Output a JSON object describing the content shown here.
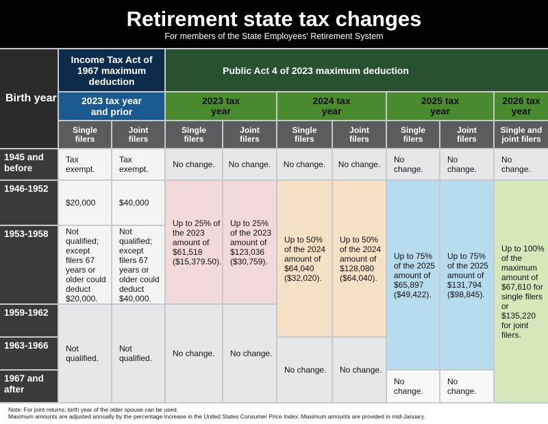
{
  "title": "Retirement state tax changes",
  "subtitle": "For members of the State Employees' Retirement System",
  "headers": {
    "birth_year": "Birth year",
    "income_tax_act": "Income Tax Act of 1967 maximum deduction",
    "public_act": "Public Act 4 of 2023 maximum deduction",
    "y2023_prior": "2023 tax year and prior",
    "y2023": "2023 tax year",
    "y2024": "2024 tax year",
    "y2025": "2025 tax year",
    "y2026": "2026 tax year",
    "single": "Single filers",
    "joint": "Joint filers",
    "single_joint": "Single and joint filers"
  },
  "rows": [
    "1945 and before",
    "1946-1952",
    "1953-1958",
    "1959-1962",
    "1963-1966",
    "1967 and after"
  ],
  "cells": {
    "tax_exempt": "Tax exempt.",
    "no_change": "No change.",
    "s1946": "$20,000",
    "j1946": "$40,000",
    "s1953": "Not qualified; except filers 67 years or older could deduct $20,000.",
    "j1953": "Not qualified; except filers 67 years or older could deduct $40,000.",
    "not_qualified": "Not qualified.",
    "s2023": "Up to 25% of the 2023 amount of $61,518 ($15,379.50).",
    "j2023": "Up to 25% of the 2023 amount of $123,036 ($30,759).",
    "s2024": "Up to 50% of the 2024 amount of $64,040 ($32,020).",
    "j2024": "Up to 50% of the 2024 amount of $128,080 ($64,040).",
    "s2025": "Up to 75% of the 2025 amount of $65,897 ($49,422).",
    "j2025": "Up to 75% of the 2025 amount of $131,794 ($98,845).",
    "a2026": "Up to 100% of the maximum amount of $67,610 for single filers or $135,220 for joint filers."
  },
  "notes": [
    "Note: For joint returns, birth year of the older spouse can be used.",
    "Maximum amounts are adjusted annually by the percentage increase in the United States Consumer Price Index. Maximum amounts are provided in mid-January."
  ]
}
